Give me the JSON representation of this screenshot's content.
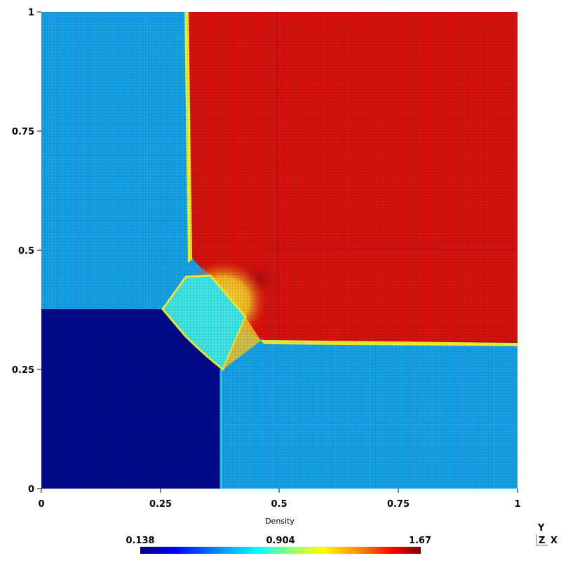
{
  "plot": {
    "x_ticks": [
      "0",
      "0.25",
      "0.5",
      "0.75",
      "1"
    ],
    "y_ticks": [
      "0",
      "0.25",
      "0.5",
      "0.75",
      "1"
    ]
  },
  "colorbar": {
    "title": "Density",
    "min_label": "0.138",
    "mid_label": "0.904",
    "max_label": "1.67",
    "colormap": [
      "#00007f",
      "#0000ff",
      "#00a0ff",
      "#00ffff",
      "#a0ff60",
      "#ffff00",
      "#ff8c00",
      "#ff0000",
      "#7f0000"
    ]
  },
  "orientation_axes": {
    "y_label": "Y",
    "z_label": "Z",
    "x_label": "X"
  },
  "colors": {
    "low_region": "#000b8c",
    "mid_region": "#16a3e8",
    "high_region": "#d8130f",
    "interface_yellow": "#f0f030",
    "cyan_region": "#3fe6e6"
  }
}
